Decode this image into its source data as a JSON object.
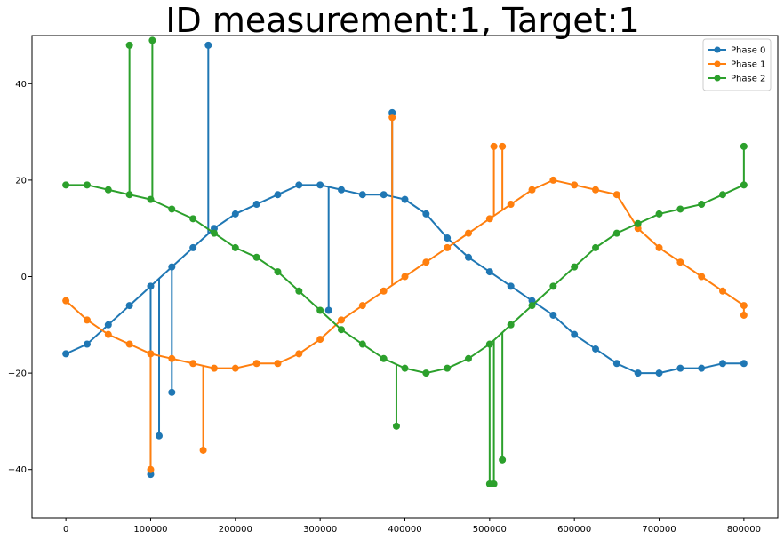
{
  "chart_data": {
    "type": "line",
    "title": "ID measurement:1, Target:1",
    "xlabel": "",
    "ylabel": "",
    "xlim": [
      -40000,
      840000
    ],
    "ylim": [
      -50,
      50
    ],
    "x_ticks": [
      0,
      100000,
      200000,
      300000,
      400000,
      500000,
      600000,
      700000,
      800000
    ],
    "x_tick_labels": [
      "0",
      "100000",
      "200000",
      "300000",
      "400000",
      "500000",
      "600000",
      "700000",
      "800000"
    ],
    "y_ticks": [
      -40,
      -20,
      0,
      20,
      40
    ],
    "y_tick_labels": [
      "−40",
      "−20",
      "0",
      "20",
      "40"
    ],
    "grid": false,
    "legend_position": "top-right",
    "marker": "circle",
    "x": [
      0,
      25000,
      50000,
      75000,
      100000,
      125000,
      150000,
      175000,
      200000,
      225000,
      250000,
      275000,
      300000,
      325000,
      350000,
      375000,
      400000,
      425000,
      450000,
      475000,
      500000,
      525000,
      550000,
      575000,
      600000,
      625000,
      650000,
      675000,
      700000,
      725000,
      750000,
      775000,
      800000
    ],
    "series": [
      {
        "name": "Phase 0",
        "color": "#1f77b4",
        "values": [
          -16,
          -14,
          -10,
          -6,
          -2,
          2,
          6,
          10,
          13,
          15,
          17,
          19,
          19,
          18,
          17,
          17,
          16,
          13,
          8,
          4,
          1,
          -2,
          -5,
          -8,
          -12,
          -15,
          -18,
          -20,
          -20,
          -19,
          -19,
          -18,
          -18
        ],
        "spikes": [
          [
            100000,
            -41
          ],
          [
            110000,
            -33
          ],
          [
            168000,
            48
          ],
          [
            385000,
            34
          ],
          [
            125000,
            -24
          ],
          [
            310000,
            -7
          ]
        ]
      },
      {
        "name": "Phase 1",
        "color": "#ff7f0e",
        "values": [
          -5,
          -9,
          -12,
          -14,
          -16,
          -17,
          -18,
          -19,
          -19,
          -18,
          -18,
          -16,
          -13,
          -9,
          -6,
          -3,
          0,
          3,
          6,
          9,
          12,
          15,
          18,
          20,
          19,
          18,
          17,
          10,
          6,
          3,
          0,
          -3,
          -6
        ],
        "spikes": [
          [
            100000,
            -40
          ],
          [
            162000,
            -36
          ],
          [
            385000,
            33
          ],
          [
            505000,
            27
          ],
          [
            515000,
            27
          ],
          [
            800000,
            -8
          ]
        ]
      },
      {
        "name": "Phase 2",
        "color": "#2ca02c",
        "values": [
          19,
          19,
          18,
          17,
          16,
          14,
          12,
          9,
          6,
          4,
          1,
          -3,
          -7,
          -11,
          -14,
          -17,
          -19,
          -20,
          -19,
          -17,
          -14,
          -10,
          -6,
          -2,
          2,
          6,
          9,
          11,
          13,
          14,
          15,
          17,
          19
        ],
        "spikes": [
          [
            75000,
            48
          ],
          [
            102000,
            49
          ],
          [
            390000,
            -31
          ],
          [
            500000,
            -43
          ],
          [
            505000,
            -43
          ],
          [
            515000,
            -38
          ],
          [
            800000,
            27
          ]
        ]
      }
    ]
  }
}
